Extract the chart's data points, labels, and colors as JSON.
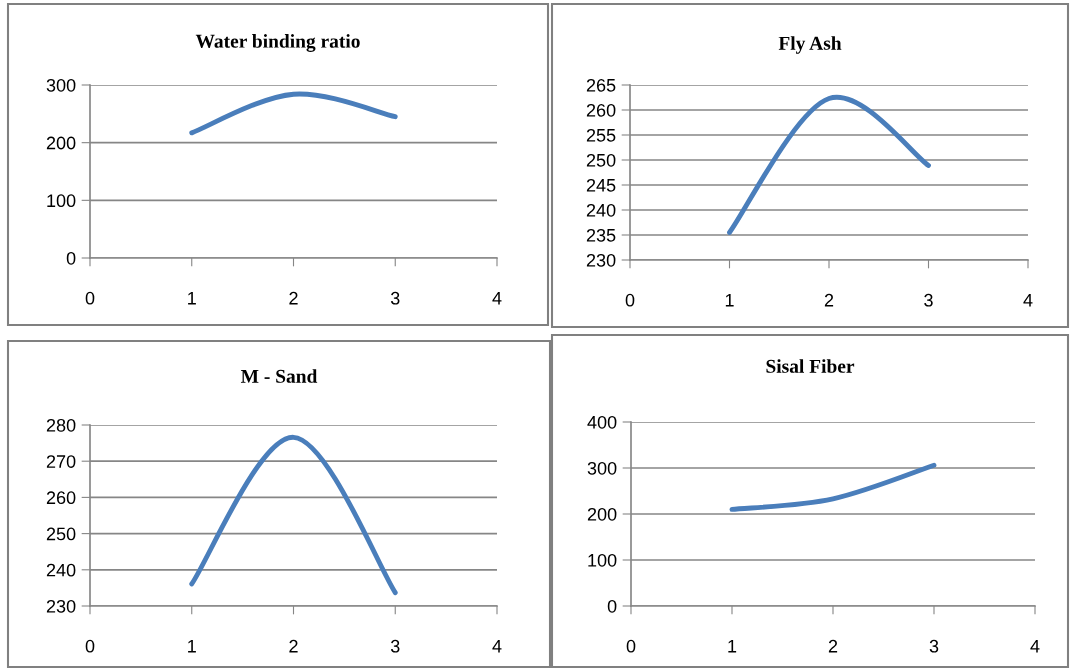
{
  "chart_data": [
    {
      "type": "line",
      "title": "Water binding ratio",
      "x": [
        1,
        2,
        3
      ],
      "series": [
        {
          "color": "#4a7ebb",
          "values": [
            217,
            284,
            245
          ]
        }
      ],
      "xlim": [
        0,
        4
      ],
      "xticks": [
        0,
        1,
        2,
        3,
        4
      ],
      "ylim": [
        0,
        300
      ],
      "yticks": [
        0,
        100,
        200,
        300
      ],
      "grid": "y",
      "marker": "none",
      "line_style": "solid"
    },
    {
      "type": "line",
      "title": "Fly Ash",
      "x": [
        1,
        2,
        3
      ],
      "series": [
        {
          "color": "#4a7ebb",
          "values": [
            235.5,
            262.3,
            248.9
          ]
        }
      ],
      "xlim": [
        0,
        4
      ],
      "xticks": [
        0,
        1,
        2,
        3,
        4
      ],
      "ylim": [
        230,
        265
      ],
      "yticks": [
        230,
        235,
        240,
        245,
        250,
        255,
        260,
        265
      ],
      "grid": "y",
      "marker": "none",
      "line_style": "solid"
    },
    {
      "type": "line",
      "title": "M - Sand",
      "x": [
        1,
        2,
        3
      ],
      "series": [
        {
          "color": "#4a7ebb",
          "values": [
            236.1,
            276.6,
            233.7
          ]
        }
      ],
      "xlim": [
        0,
        4
      ],
      "xticks": [
        0,
        1,
        2,
        3,
        4
      ],
      "ylim": [
        230,
        280
      ],
      "yticks": [
        230,
        240,
        250,
        260,
        270,
        280
      ],
      "grid": "y",
      "marker": "none",
      "line_style": "solid"
    },
    {
      "type": "line",
      "title": "Sisal Fiber",
      "x": [
        1,
        2,
        3
      ],
      "series": [
        {
          "color": "#4a7ebb",
          "values": [
            210,
            233,
            306
          ]
        }
      ],
      "xlim": [
        0,
        4
      ],
      "xticks": [
        0,
        1,
        2,
        3,
        4
      ],
      "ylim": [
        0,
        400
      ],
      "yticks": [
        0,
        100,
        200,
        300,
        400
      ],
      "grid": "y",
      "marker": "none",
      "line_style": "solid"
    }
  ]
}
